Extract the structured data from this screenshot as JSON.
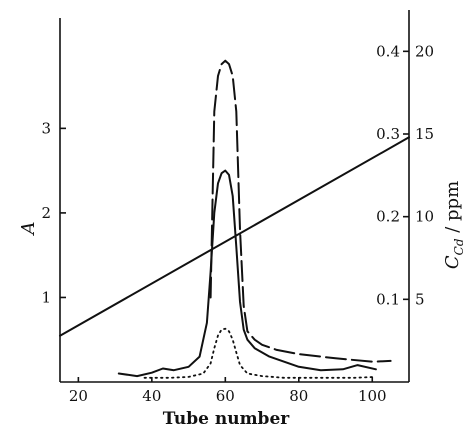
{
  "chart_data": {
    "type": "line",
    "title": "",
    "xlabel": "Tube number",
    "ylabel_left": "A",
    "ylabel_right": {
      "main": "C",
      "subscript": "Cd",
      "suffix": " / ppm"
    },
    "xlim": [
      15,
      110
    ],
    "ylim_left": [
      0,
      4.4
    ],
    "ylim_right": [
      0,
      22.5
    ],
    "grid": false,
    "legend": "none",
    "x_ticks": [
      20,
      40,
      60,
      80,
      100
    ],
    "left_ticks": [
      1,
      2,
      3
    ],
    "right_ticks_ppm": [
      5,
      10,
      15,
      20
    ],
    "inner_tick_labels": [
      {
        "label": "0.1",
        "at_ppm": 5
      },
      {
        "label": "0.2",
        "at_ppm": 10
      },
      {
        "label": "0.3",
        "at_ppm": 15
      },
      {
        "label": "0.4",
        "at_ppm": 20
      }
    ],
    "series": [
      {
        "axis": "left",
        "style": "dashed",
        "x": [
          56,
          57,
          58,
          59,
          60,
          61,
          62,
          63,
          64,
          65,
          66,
          68,
          70,
          74,
          80,
          90,
          100,
          105
        ],
        "y": [
          1.0,
          3.2,
          3.62,
          3.76,
          3.8,
          3.76,
          3.62,
          3.2,
          1.8,
          0.9,
          0.6,
          0.5,
          0.44,
          0.38,
          0.33,
          0.28,
          0.24,
          0.25
        ]
      },
      {
        "axis": "left",
        "style": "solid",
        "x": [
          31,
          36,
          40,
          43,
          46,
          50,
          53,
          55,
          56,
          57,
          58,
          59,
          60,
          61,
          62,
          63,
          64,
          65,
          66,
          68,
          72,
          76,
          80,
          86,
          92,
          96,
          101
        ],
        "y": [
          0.1,
          0.07,
          0.11,
          0.16,
          0.14,
          0.18,
          0.3,
          0.7,
          1.3,
          2.0,
          2.35,
          2.47,
          2.5,
          2.45,
          2.2,
          1.6,
          0.95,
          0.62,
          0.5,
          0.4,
          0.3,
          0.24,
          0.18,
          0.14,
          0.15,
          0.2,
          0.15
        ]
      },
      {
        "axis": "left",
        "style": "dotted",
        "x": [
          38,
          45,
          50,
          54,
          56,
          57,
          58,
          59,
          60,
          61,
          62,
          63,
          64,
          66,
          70,
          76,
          85,
          95,
          101
        ],
        "y": [
          0.05,
          0.05,
          0.06,
          0.1,
          0.22,
          0.4,
          0.55,
          0.62,
          0.63,
          0.6,
          0.5,
          0.35,
          0.2,
          0.1,
          0.07,
          0.05,
          0.05,
          0.05,
          0.06
        ]
      },
      {
        "axis": "right",
        "style": "solid",
        "x": [
          15,
          110
        ],
        "y": [
          2.8,
          14.8
        ]
      }
    ]
  }
}
